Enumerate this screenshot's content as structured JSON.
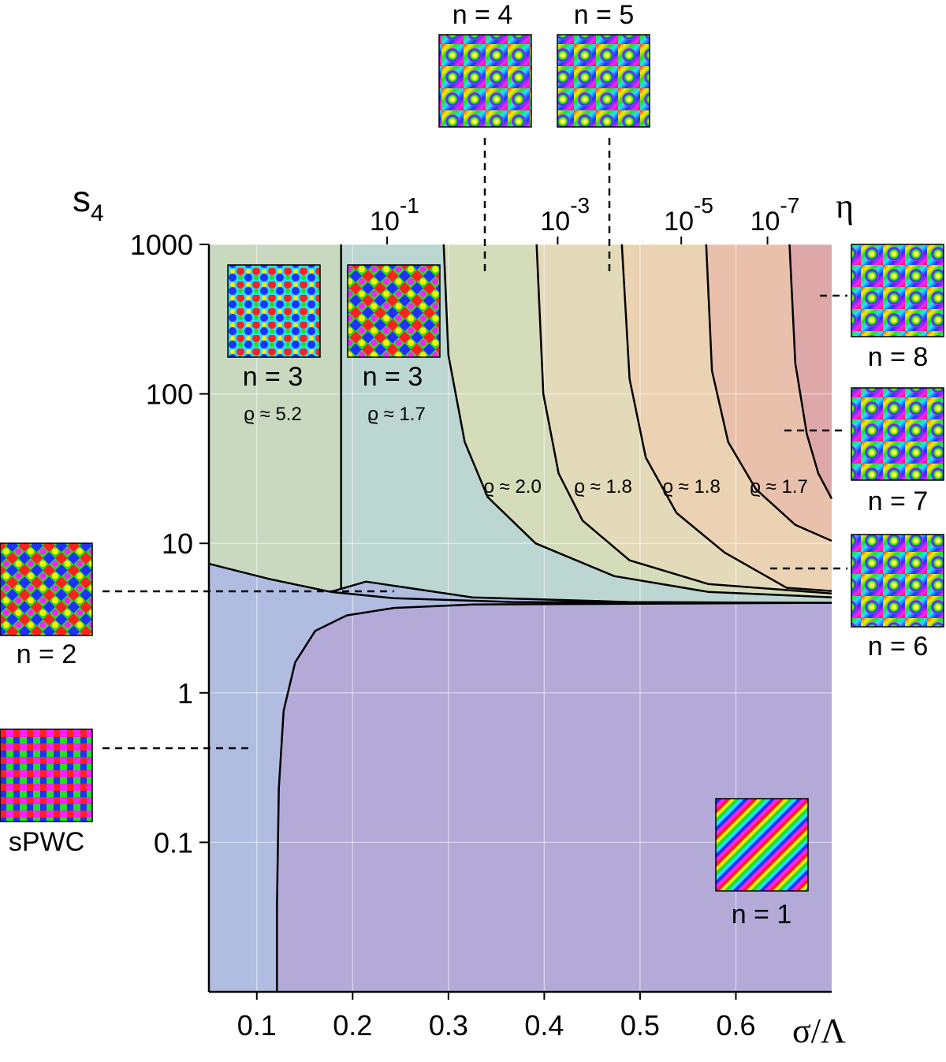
{
  "chart_data": {
    "type": "phase-diagram",
    "xlabel": "σ/Λ",
    "ylabel": {
      "main": "s",
      "sub": "4"
    },
    "x2label": "η",
    "xlim": [
      0.05,
      0.7
    ],
    "ylim": [
      0.01,
      1000
    ],
    "yscale": "log",
    "grid": true,
    "xticks": [
      0.1,
      0.2,
      0.3,
      0.4,
      0.5,
      0.6
    ],
    "yticks": [
      1000,
      100,
      10,
      1,
      0.1
    ],
    "x2ticks": [
      {
        "value": 0.1,
        "label": "10",
        "exponent": "-1",
        "sigma": 0.236
      },
      {
        "value": 0.001,
        "label": "10",
        "exponent": "-3",
        "sigma": 0.414
      },
      {
        "value": 1e-05,
        "label": "10",
        "exponent": "-5",
        "sigma": 0.543
      },
      {
        "value": 1e-07,
        "label": "10",
        "exponent": "-7",
        "sigma": 0.633
      }
    ],
    "boundary_color": "#000000",
    "grid_color": "#ffffff",
    "boundaries": [
      {
        "x": [
          0.121,
          0.121,
          0.123,
          0.128,
          0.14,
          0.161,
          0.194,
          0.243,
          0.325,
          0.7
        ],
        "values": [
          0.01,
          0.037,
          0.23,
          0.76,
          1.6,
          2.6,
          3.3,
          3.7,
          3.9,
          4.0
        ]
      },
      {
        "x": [
          0.05,
          0.112,
          0.177,
          0.243,
          0.366,
          0.7
        ],
        "values": [
          7.3,
          5.8,
          4.74,
          4.3,
          4.05,
          4.0
        ]
      },
      {
        "x": [
          0.177,
          0.214,
          0.325,
          0.489,
          0.7
        ],
        "values": [
          4.74,
          5.55,
          4.35,
          4.05,
          4.0
        ]
      },
      {
        "x": [
          0.188,
          0.188
        ],
        "values": [
          1000,
          5.0
        ]
      },
      {
        "x": [
          0.295,
          0.3,
          0.317,
          0.341,
          0.391,
          0.473,
          0.571,
          0.7
        ],
        "values": [
          1000,
          182,
          47.7,
          20.4,
          10,
          6.04,
          4.74,
          4.36
        ]
      },
      {
        "x": [
          0.392,
          0.399,
          0.415,
          0.44,
          0.489,
          0.571,
          0.7
        ],
        "values": [
          1000,
          100,
          29.4,
          14.2,
          7.7,
          5.35,
          4.62
        ]
      },
      {
        "x": [
          0.481,
          0.489,
          0.506,
          0.538,
          0.588,
          0.653,
          0.7
        ],
        "values": [
          1000,
          126,
          37.5,
          16,
          8.7,
          5.04,
          4.8
        ]
      },
      {
        "x": [
          0.569,
          0.575,
          0.592,
          0.621,
          0.662,
          0.7
        ],
        "values": [
          1000,
          143,
          47.7,
          23,
          13.3,
          10.4
        ]
      },
      {
        "x": [
          0.656,
          0.662,
          0.674,
          0.686,
          0.7
        ],
        "values": [
          1000,
          161,
          54,
          29.4,
          19.9
        ]
      }
    ],
    "fills": [
      "#c9d9c0",
      "#bcd6d2",
      "#d5dcb9",
      "#e3dab9",
      "#ebd2b3",
      "#e8c0ac",
      "#dea8a8",
      "#b0bde0",
      "#b3aad8"
    ],
    "patterns": [
      "n = 4",
      "n = 5",
      "n = 3",
      "n = 3",
      "n = 8",
      "n = 7",
      "n = 6",
      "n = 2",
      "sPWC",
      "n = 1"
    ],
    "rho_labels": [
      "ϱ ≈ 5.2",
      "ϱ ≈ 1.7",
      "ϱ ≈ 2.0",
      "ϱ ≈ 1.8",
      "ϱ ≈ 1.8",
      "ϱ ≈ 1.7"
    ]
  }
}
